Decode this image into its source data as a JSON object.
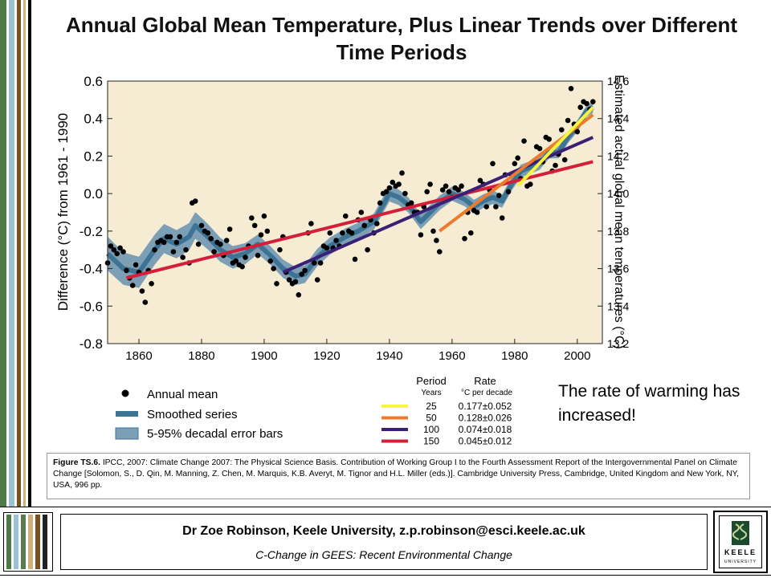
{
  "title": "Annual Global Mean Temperature, Plus Linear Trends over Different Time Periods",
  "note": "The rate of warming has increased!",
  "caption": {
    "label": "Figure TS.6.",
    "text": "IPCC, 2007: Climate Change 2007: The Physical Science Basis. Contribution of Working Group I to the Fourth Assessment Report of the Intergovernmental Panel on Climate Change [Solomon, S., D. Qin, M. Manning, Z. Chen, M. Marquis, K.B. Averyt, M. Tignor and H.L. Miller (eds.)]. Cambridge University Press, Cambridge, United Kingdom and New York, NY, USA, 996 pp."
  },
  "footer": {
    "author": "Dr Zoe Robinson, Keele University, z.p.robinson@esci.keele.ac.uk",
    "course": "C-Change in GEES: Recent Environmental Change"
  },
  "logo": {
    "line1": "KEELE",
    "line2": "UNIVERSITY"
  },
  "colors": {
    "plot_bg": "#f6ecd4",
    "band": "#7d9fb5",
    "smooth": "#3d7494",
    "red": "#d41f3a",
    "purple": "#3b1e76",
    "orange": "#ec7b2c",
    "yellow": "#f7f53c"
  },
  "chart_data": {
    "type": "scatter",
    "ylabel": "Difference (°C) from 1961 - 1990",
    "y2label": "Estimated actual global mean temperatures (°C)",
    "xlim": [
      1850,
      2008
    ],
    "ylim": [
      -0.8,
      0.6
    ],
    "y2lim": [
      13.2,
      14.6
    ],
    "x_ticks": [
      "1860",
      "1880",
      "1900",
      "1920",
      "1940",
      "1960",
      "1980",
      "2000"
    ],
    "y_ticks": [
      "0.6",
      "0.4",
      "0.2",
      "0.0",
      "-0.2",
      "-0.4",
      "-0.6",
      "-0.8"
    ],
    "y2_ticks": [
      "14.6",
      "14.4",
      "14.2",
      "14.0",
      "13.8",
      "13.6",
      "13.4",
      "13.2"
    ],
    "annual_mean": {
      "years": [
        1850,
        1851,
        1852,
        1853,
        1854,
        1855,
        1856,
        1857,
        1858,
        1859,
        1860,
        1861,
        1862,
        1863,
        1864,
        1865,
        1866,
        1867,
        1868,
        1869,
        1870,
        1871,
        1872,
        1873,
        1874,
        1875,
        1876,
        1877,
        1878,
        1879,
        1880,
        1881,
        1882,
        1883,
        1884,
        1885,
        1886,
        1887,
        1888,
        1889,
        1890,
        1891,
        1892,
        1893,
        1894,
        1895,
        1896,
        1897,
        1898,
        1899,
        1900,
        1901,
        1902,
        1903,
        1904,
        1905,
        1906,
        1907,
        1908,
        1909,
        1910,
        1911,
        1912,
        1913,
        1914,
        1915,
        1916,
        1917,
        1918,
        1919,
        1920,
        1921,
        1922,
        1923,
        1924,
        1925,
        1926,
        1927,
        1928,
        1929,
        1930,
        1931,
        1932,
        1933,
        1934,
        1935,
        1936,
        1937,
        1938,
        1939,
        1940,
        1941,
        1942,
        1943,
        1944,
        1945,
        1946,
        1947,
        1948,
        1949,
        1950,
        1951,
        1952,
        1953,
        1954,
        1955,
        1956,
        1957,
        1958,
        1959,
        1960,
        1961,
        1962,
        1963,
        1964,
        1965,
        1966,
        1967,
        1968,
        1969,
        1970,
        1971,
        1972,
        1973,
        1974,
        1975,
        1976,
        1977,
        1978,
        1979,
        1980,
        1981,
        1982,
        1983,
        1984,
        1985,
        1986,
        1987,
        1988,
        1989,
        1990,
        1991,
        1992,
        1993,
        1994,
        1995,
        1996,
        1997,
        1998,
        1999,
        2000,
        2001,
        2002,
        2003,
        2004,
        2005
      ],
      "values": [
        -0.37,
        -0.28,
        -0.3,
        -0.32,
        -0.29,
        -0.31,
        -0.41,
        -0.45,
        -0.49,
        -0.38,
        -0.42,
        -0.52,
        -0.58,
        -0.41,
        -0.48,
        -0.3,
        -0.26,
        -0.25,
        -0.26,
        -0.23,
        -0.23,
        -0.31,
        -0.26,
        -0.23,
        -0.34,
        -0.3,
        -0.37,
        -0.05,
        -0.04,
        -0.27,
        -0.17,
        -0.2,
        -0.21,
        -0.24,
        -0.31,
        -0.26,
        -0.27,
        -0.33,
        -0.25,
        -0.19,
        -0.37,
        -0.36,
        -0.38,
        -0.39,
        -0.34,
        -0.28,
        -0.13,
        -0.17,
        -0.33,
        -0.22,
        -0.12,
        -0.2,
        -0.36,
        -0.4,
        -0.48,
        -0.3,
        -0.23,
        -0.42,
        -0.46,
        -0.48,
        -0.47,
        -0.54,
        -0.43,
        -0.41,
        -0.21,
        -0.16,
        -0.37,
        -0.46,
        -0.37,
        -0.28,
        -0.29,
        -0.21,
        -0.29,
        -0.25,
        -0.28,
        -0.21,
        -0.12,
        -0.2,
        -0.21,
        -0.35,
        -0.14,
        -0.1,
        -0.17,
        -0.3,
        -0.14,
        -0.21,
        -0.16,
        -0.05,
        0.0,
        0.01,
        0.03,
        0.06,
        0.04,
        0.05,
        0.11,
        0.0,
        -0.06,
        -0.05,
        -0.1,
        -0.1,
        -0.22,
        -0.07,
        0.01,
        0.05,
        -0.2,
        -0.25,
        -0.31,
        0.02,
        0.04,
        0.01,
        -0.02,
        0.03,
        0.02,
        0.04,
        -0.24,
        -0.1,
        -0.21,
        -0.09,
        -0.1,
        0.07,
        0.05,
        -0.07,
        0.02,
        0.16,
        -0.07,
        -0.01,
        -0.13,
        0.1,
        0.01,
        0.1,
        0.16,
        0.19,
        0.08,
        0.28,
        0.04,
        0.05,
        0.17,
        0.25,
        0.24,
        0.17,
        0.3,
        0.29,
        0.12,
        0.15,
        0.21,
        0.34,
        0.18,
        0.39,
        0.56,
        0.37,
        0.33,
        0.46,
        0.49,
        0.48,
        0.45,
        0.49
      ]
    },
    "smoothed_series": {
      "years": [
        1850,
        1855,
        1860,
        1865,
        1868,
        1872,
        1876,
        1878,
        1882,
        1886,
        1890,
        1894,
        1898,
        1902,
        1906,
        1910,
        1913,
        1917,
        1921,
        1926,
        1930,
        1935,
        1938,
        1940,
        1943,
        1946,
        1950,
        1953,
        1956,
        1960,
        1964,
        1967,
        1970,
        1973,
        1976,
        1979,
        1982,
        1985,
        1988,
        1991,
        1994,
        1997,
        2000,
        2003,
        2005
      ],
      "values": [
        -0.32,
        -0.4,
        -0.42,
        -0.3,
        -0.24,
        -0.27,
        -0.23,
        -0.17,
        -0.23,
        -0.3,
        -0.34,
        -0.32,
        -0.27,
        -0.33,
        -0.4,
        -0.44,
        -0.43,
        -0.34,
        -0.28,
        -0.23,
        -0.2,
        -0.15,
        -0.06,
        0.0,
        -0.02,
        -0.06,
        -0.15,
        -0.1,
        -0.05,
        0.0,
        -0.03,
        -0.07,
        -0.04,
        -0.02,
        -0.04,
        0.05,
        0.12,
        0.14,
        0.16,
        0.22,
        0.22,
        0.3,
        0.36,
        0.44,
        0.46
      ]
    },
    "error_band_halfwidth": {
      "years": [
        1850,
        1880,
        1900,
        1950,
        2005
      ],
      "values": [
        0.09,
        0.07,
        0.05,
        0.04,
        0.03
      ]
    },
    "trends": [
      {
        "period": "25",
        "rate": "0.177±0.052",
        "color": "#f7f53c",
        "x": [
          1981,
          2005
        ],
        "y": [
          0.04,
          0.46
        ]
      },
      {
        "period": "50",
        "rate": "0.128±0.026",
        "color": "#ec7b2c",
        "x": [
          1956,
          2005
        ],
        "y": [
          -0.2,
          0.42
        ]
      },
      {
        "period": "100",
        "rate": "0.074±0.018",
        "color": "#3b1e76",
        "x": [
          1906,
          2005
        ],
        "y": [
          -0.42,
          0.3
        ]
      },
      {
        "period": "150",
        "rate": "0.045±0.012",
        "color": "#d41f3a",
        "x": [
          1856,
          2005
        ],
        "y": [
          -0.45,
          0.17
        ]
      }
    ],
    "legend": {
      "items": [
        "Annual mean",
        "Smoothed series",
        "5-95% decadal error bars"
      ],
      "table_header": {
        "period": "Period",
        "years": "Years",
        "rate": "Rate",
        "unit": "°C  per decade"
      }
    }
  }
}
